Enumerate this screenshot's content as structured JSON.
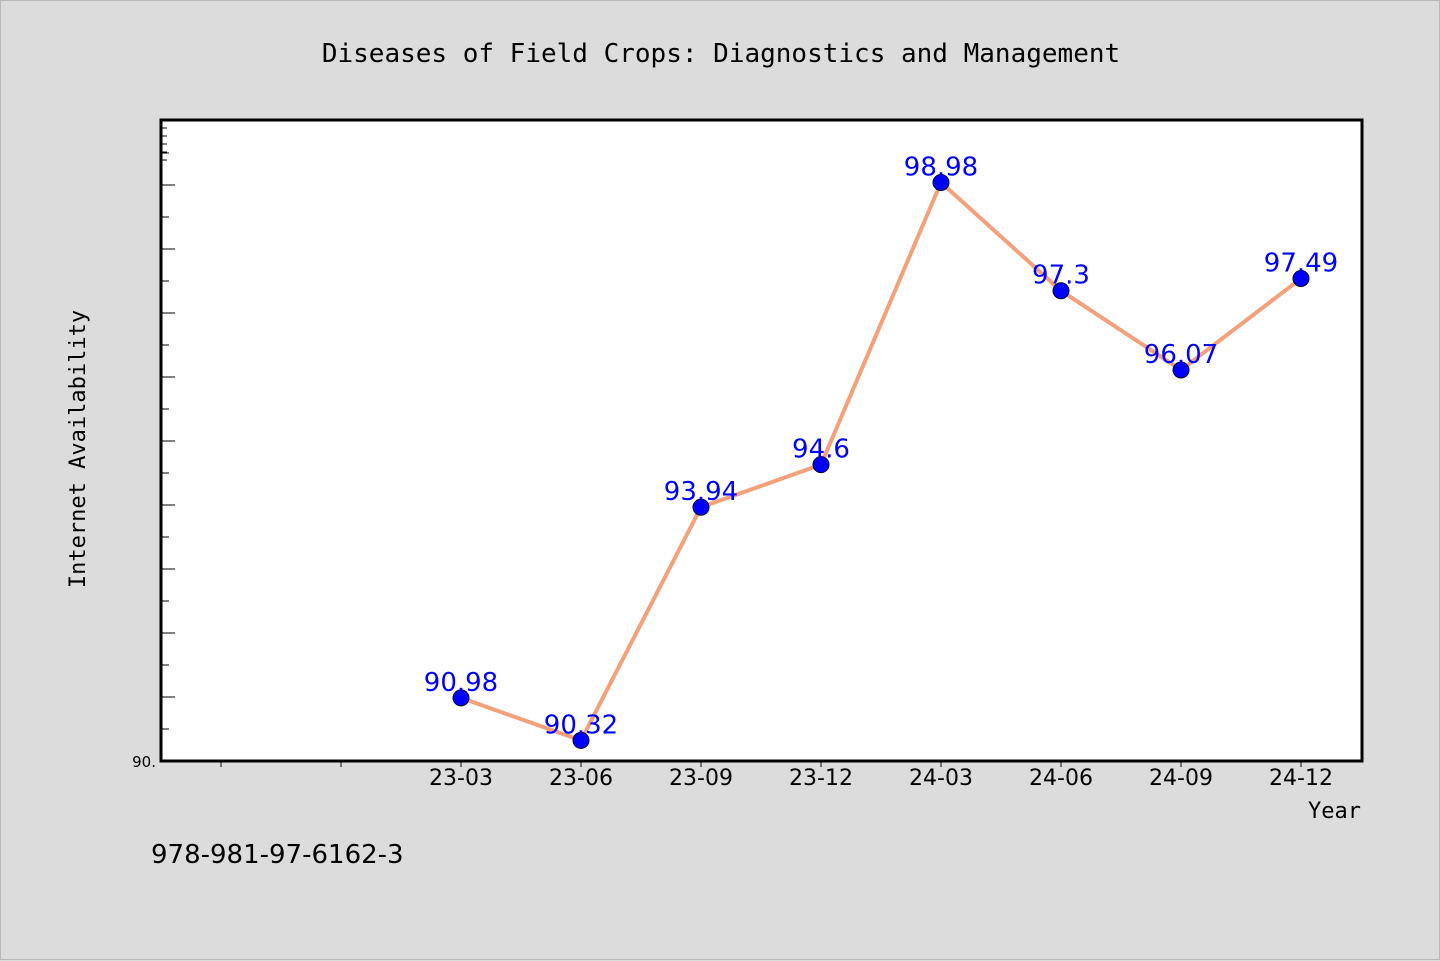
{
  "chart_data": {
    "type": "line",
    "title": "Diseases of Field Crops: Diagnostics and Management",
    "xlabel": "Year",
    "ylabel": "Internet Availability",
    "categories": [
      "23-03",
      "23-06",
      "23-09",
      "23-12",
      "24-03",
      "24-06",
      "24-09",
      "24-12"
    ],
    "values": [
      90.98,
      90.32,
      93.94,
      94.6,
      98.98,
      97.3,
      96.07,
      97.49
    ],
    "data_labels": [
      "90.98",
      "90.32",
      "93.94",
      "94.6",
      "98.98",
      "97.3",
      "96.07",
      "97.49"
    ],
    "ylim": [
      90,
      100
    ],
    "y_min_label": "90.",
    "grid": false,
    "legend": "none",
    "line_color": "#f4a07a",
    "marker_color": "#0000ff",
    "label_color": "#0000ff"
  },
  "footer": {
    "isbn": "978-981-97-6162-3"
  }
}
